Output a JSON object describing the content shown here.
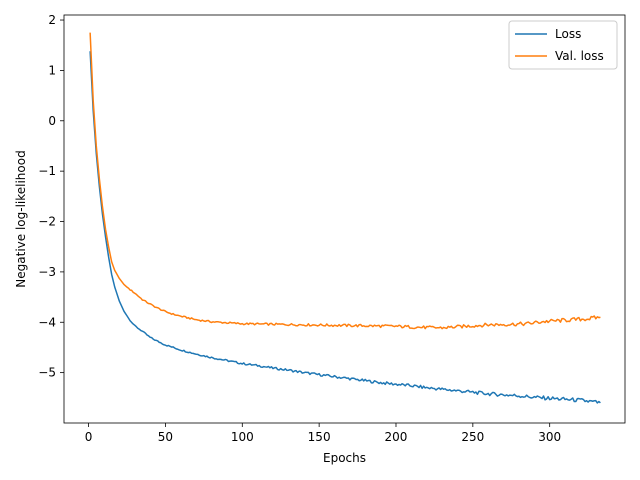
{
  "chart_data": {
    "type": "line",
    "title": "",
    "xlabel": "Epochs",
    "ylabel": "Negative log-likelihood",
    "xlim": [
      -16,
      349
    ],
    "ylim": [
      -6.0,
      2.1
    ],
    "xticks": [
      0,
      50,
      100,
      150,
      200,
      250,
      300
    ],
    "yticks": [
      2,
      1,
      0,
      -1,
      -2,
      -3,
      -4,
      -5
    ],
    "ytick_labels": [
      "2",
      "1",
      "0",
      "−1",
      "−2",
      "−3",
      "−4",
      "−5"
    ],
    "legend_position": "top-right",
    "grid": false,
    "series": [
      {
        "name": "Loss",
        "color": "#1f77b4",
        "points": [
          [
            1,
            1.38
          ],
          [
            3,
            0.2
          ],
          [
            5,
            -0.65
          ],
          [
            7,
            -1.3
          ],
          [
            9,
            -1.85
          ],
          [
            11,
            -2.3
          ],
          [
            13,
            -2.7
          ],
          [
            15,
            -3.05
          ],
          [
            17,
            -3.3
          ],
          [
            20,
            -3.58
          ],
          [
            23,
            -3.78
          ],
          [
            26,
            -3.92
          ],
          [
            30,
            -4.07
          ],
          [
            35,
            -4.18
          ],
          [
            40,
            -4.3
          ],
          [
            45,
            -4.38
          ],
          [
            50,
            -4.45
          ],
          [
            60,
            -4.55
          ],
          [
            70,
            -4.63
          ],
          [
            80,
            -4.7
          ],
          [
            90,
            -4.76
          ],
          [
            100,
            -4.82
          ],
          [
            110,
            -4.86
          ],
          [
            120,
            -4.91
          ],
          [
            130,
            -4.95
          ],
          [
            140,
            -5.0
          ],
          [
            150,
            -5.04
          ],
          [
            160,
            -5.08
          ],
          [
            170,
            -5.12
          ],
          [
            180,
            -5.16
          ],
          [
            190,
            -5.2
          ],
          [
            200,
            -5.23
          ],
          [
            210,
            -5.26
          ],
          [
            220,
            -5.3
          ],
          [
            230,
            -5.33
          ],
          [
            240,
            -5.36
          ],
          [
            250,
            -5.39
          ],
          [
            260,
            -5.42
          ],
          [
            270,
            -5.44
          ],
          [
            280,
            -5.46
          ],
          [
            290,
            -5.49
          ],
          [
            300,
            -5.51
          ],
          [
            310,
            -5.53
          ],
          [
            320,
            -5.55
          ],
          [
            333,
            -5.6
          ]
        ]
      },
      {
        "name": "Val. loss",
        "color": "#ff7f0e",
        "points": [
          [
            1,
            1.75
          ],
          [
            3,
            0.4
          ],
          [
            5,
            -0.5
          ],
          [
            7,
            -1.15
          ],
          [
            9,
            -1.7
          ],
          [
            11,
            -2.15
          ],
          [
            13,
            -2.5
          ],
          [
            15,
            -2.8
          ],
          [
            17,
            -2.97
          ],
          [
            20,
            -3.13
          ],
          [
            23,
            -3.25
          ],
          [
            26,
            -3.33
          ],
          [
            30,
            -3.42
          ],
          [
            35,
            -3.55
          ],
          [
            40,
            -3.64
          ],
          [
            45,
            -3.72
          ],
          [
            50,
            -3.79
          ],
          [
            55,
            -3.84
          ],
          [
            60,
            -3.88
          ],
          [
            70,
            -3.95
          ],
          [
            80,
            -3.99
          ],
          [
            90,
            -4.01
          ],
          [
            100,
            -4.03
          ],
          [
            120,
            -4.04
          ],
          [
            140,
            -4.05
          ],
          [
            160,
            -4.06
          ],
          [
            180,
            -4.07
          ],
          [
            200,
            -4.08
          ],
          [
            215,
            -4.1
          ],
          [
            230,
            -4.11
          ],
          [
            245,
            -4.08
          ],
          [
            260,
            -4.05
          ],
          [
            275,
            -4.04
          ],
          [
            285,
            -4.03
          ],
          [
            295,
            -3.99
          ],
          [
            305,
            -3.97
          ],
          [
            315,
            -3.95
          ],
          [
            325,
            -3.93
          ],
          [
            333,
            -3.9
          ]
        ]
      }
    ]
  }
}
